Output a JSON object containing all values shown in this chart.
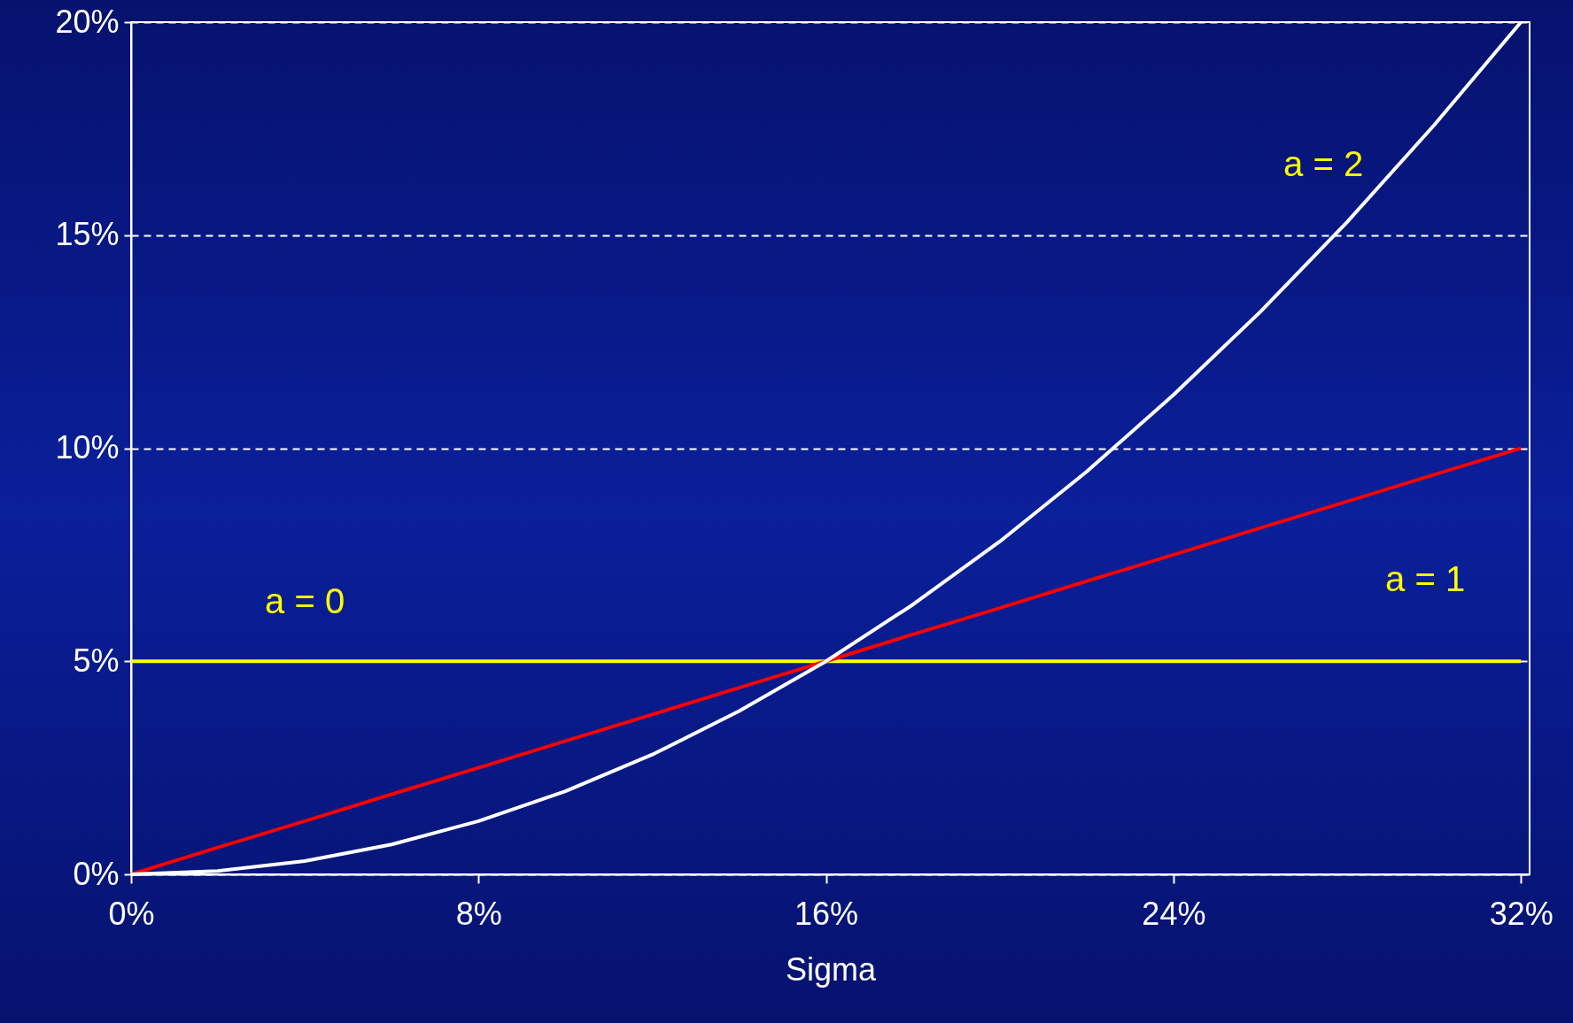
{
  "chart_data": {
    "type": "line",
    "xlabel": "Sigma",
    "x": [
      0,
      2,
      4,
      6,
      8,
      10,
      12,
      14,
      16,
      18,
      20,
      22,
      24,
      26,
      28,
      30,
      32
    ],
    "series": [
      {
        "name": "a = 0",
        "color": "#ffff00",
        "values": [
          5,
          5,
          5,
          5,
          5,
          5,
          5,
          5,
          5,
          5,
          5,
          5,
          5,
          5,
          5,
          5,
          5
        ]
      },
      {
        "name": "a = 1",
        "color": "#ff0000",
        "values": [
          0,
          0.63,
          1.25,
          1.88,
          2.5,
          3.13,
          3.75,
          4.38,
          5,
          5.63,
          6.25,
          6.88,
          7.5,
          8.13,
          8.75,
          9.38,
          10
        ]
      },
      {
        "name": "a = 2",
        "color": "#ffffff",
        "values": [
          0,
          0.08,
          0.31,
          0.7,
          1.25,
          1.95,
          2.81,
          3.83,
          5,
          6.33,
          7.81,
          9.45,
          11.25,
          13.2,
          15.31,
          17.58,
          20
        ]
      }
    ],
    "xlim": [
      0,
      32.2
    ],
    "xticks": [
      {
        "value": 0,
        "label": "0%"
      },
      {
        "value": 8,
        "label": "8%"
      },
      {
        "value": 16,
        "label": "16%"
      },
      {
        "value": 24,
        "label": "24%"
      },
      {
        "value": 32,
        "label": "32%"
      }
    ],
    "ylim": [
      0,
      20
    ],
    "yticks": [
      {
        "value": 0,
        "label": "0%"
      },
      {
        "value": 5,
        "label": "5%"
      },
      {
        "value": 10,
        "label": "10%"
      },
      {
        "value": 15,
        "label": "15%"
      },
      {
        "value": 20,
        "label": "20%"
      }
    ],
    "grid": "y",
    "legend": false,
    "marker": "none",
    "line_style": "solid"
  }
}
